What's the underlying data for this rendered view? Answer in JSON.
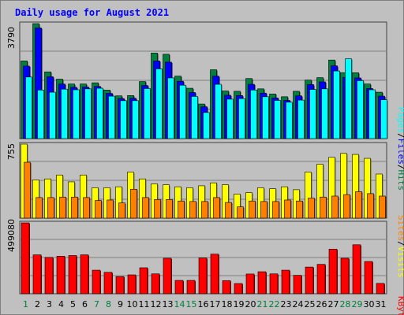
{
  "title": "Daily usage for August 2021",
  "colors": {
    "bg": "#c0c0c0",
    "title": "#0000ff",
    "hits": "#007f3f",
    "files": "#0000ff",
    "pages": "#00ffff",
    "visits": "#ffff00",
    "sites": "#ff7f00",
    "kbytes": "#ff0000",
    "weekend_label": "#007f3f",
    "weekday_label": "#000000",
    "grid": "#808080"
  },
  "labels": {
    "hits_max": "3790",
    "visits_max": "755",
    "kbytes_max": "499080",
    "pages": "Pages",
    "files": "Files",
    "hits": "Hits",
    "sep": "/",
    "sites": "Sites",
    "visits": "Visits",
    "kbytes": "KBytes"
  },
  "chart_data": [
    {
      "type": "bar",
      "title": "Daily usage for August 2021",
      "categories": [
        "1",
        "2",
        "3",
        "4",
        "5",
        "6",
        "7",
        "8",
        "9",
        "10",
        "11",
        "12",
        "13",
        "14",
        "15",
        "16",
        "17",
        "18",
        "19",
        "20",
        "21",
        "22",
        "23",
        "24",
        "25",
        "26",
        "27",
        "28",
        "29",
        "30",
        "31"
      ],
      "weekend_days": [
        "1",
        "7",
        "8",
        "14",
        "15",
        "21",
        "22",
        "28",
        "29"
      ],
      "ylim": [
        0,
        3790
      ],
      "series": [
        {
          "name": "Hits",
          "values": [
            2560,
            3790,
            2200,
            1960,
            1800,
            1800,
            1840,
            1600,
            1410,
            1420,
            1880,
            2820,
            2780,
            2060,
            1660,
            1140,
            2270,
            1570,
            1560,
            1980,
            1640,
            1470,
            1380,
            1560,
            1930,
            2010,
            2590,
            2170,
            2170,
            1800,
            1530
          ]
        },
        {
          "name": "Files",
          "values": [
            2390,
            3650,
            2040,
            1800,
            1690,
            1700,
            1720,
            1490,
            1320,
            1330,
            1750,
            2560,
            2520,
            1890,
            1520,
            1050,
            2060,
            1430,
            1420,
            1790,
            1500,
            1340,
            1260,
            1410,
            1780,
            1870,
            2400,
            2020,
            2000,
            1650,
            1400
          ]
        },
        {
          "name": "Pages",
          "values": [
            2030,
            1600,
            1530,
            1630,
            1610,
            1640,
            1660,
            1400,
            1250,
            1250,
            1650,
            2300,
            2000,
            1760,
            1390,
            860,
            1790,
            1300,
            1320,
            1600,
            1380,
            1260,
            1200,
            1270,
            1620,
            1640,
            2230,
            2630,
            1910,
            1610,
            1280
          ]
        }
      ]
    },
    {
      "type": "bar",
      "categories": [
        "1",
        "2",
        "3",
        "4",
        "5",
        "6",
        "7",
        "8",
        "9",
        "10",
        "11",
        "12",
        "13",
        "14",
        "15",
        "16",
        "17",
        "18",
        "19",
        "20",
        "21",
        "22",
        "23",
        "24",
        "25",
        "26",
        "27",
        "28",
        "29",
        "30",
        "31"
      ],
      "ylim": [
        0,
        755
      ],
      "series": [
        {
          "name": "Visits",
          "values": [
            755,
            390,
            400,
            440,
            370,
            440,
            310,
            310,
            320,
            470,
            400,
            350,
            340,
            320,
            310,
            330,
            360,
            340,
            245,
            260,
            310,
            300,
            320,
            290,
            470,
            550,
            620,
            660,
            650,
            610,
            450
          ]
        },
        {
          "name": "Sites",
          "values": [
            570,
            210,
            210,
            215,
            215,
            210,
            180,
            185,
            155,
            295,
            210,
            190,
            190,
            175,
            170,
            170,
            210,
            160,
            115,
            175,
            170,
            170,
            185,
            175,
            205,
            215,
            225,
            240,
            270,
            250,
            225
          ]
        }
      ]
    },
    {
      "type": "bar",
      "categories": [
        "1",
        "2",
        "3",
        "4",
        "5",
        "6",
        "7",
        "8",
        "9",
        "10",
        "11",
        "12",
        "13",
        "14",
        "15",
        "16",
        "17",
        "18",
        "19",
        "20",
        "21",
        "22",
        "23",
        "24",
        "25",
        "26",
        "27",
        "28",
        "29",
        "30",
        "31"
      ],
      "ylim": [
        0,
        499080
      ],
      "series": [
        {
          "name": "KBytes",
          "values": [
            499080,
            274000,
            256000,
            264000,
            269000,
            274000,
            166000,
            151000,
            121000,
            133000,
            183000,
            140000,
            250000,
            94000,
            94000,
            252000,
            279000,
            92000,
            72000,
            139000,
            155000,
            140000,
            166000,
            130000,
            188000,
            207000,
            314000,
            250000,
            345000,
            227000,
            73000
          ]
        }
      ]
    }
  ]
}
